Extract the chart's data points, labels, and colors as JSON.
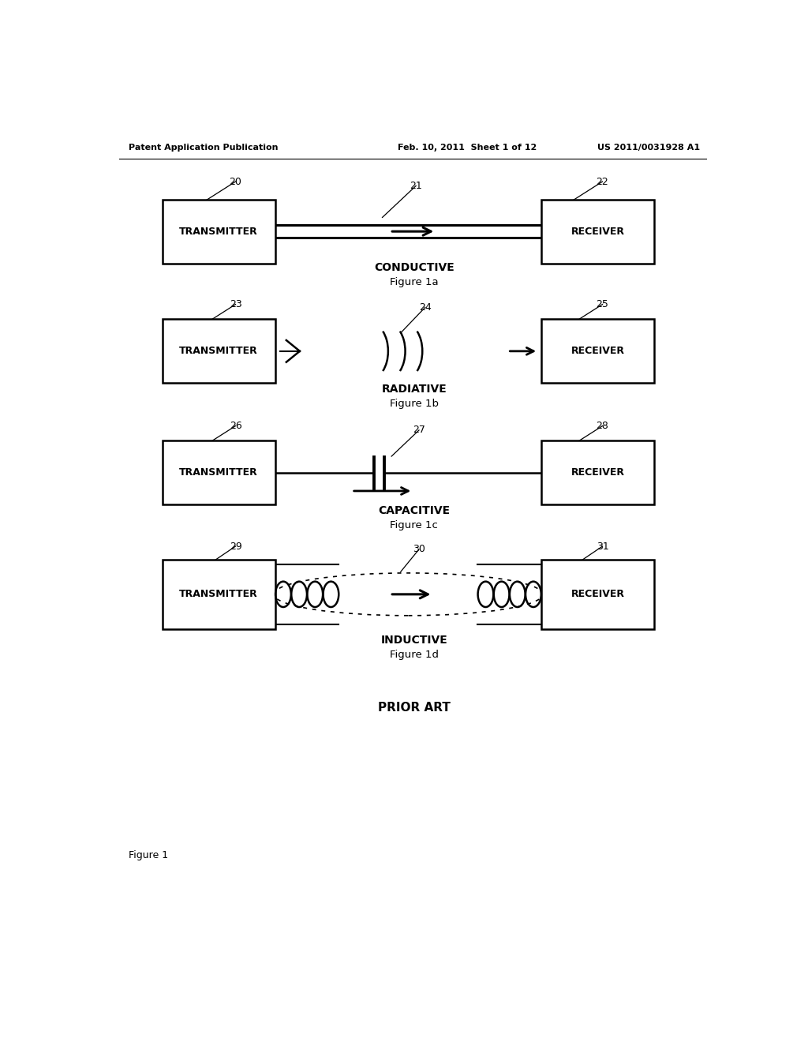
{
  "header_left": "Patent Application Publication",
  "header_mid": "Feb. 10, 2011  Sheet 1 of 12",
  "header_right": "US 2011/0031928 A1",
  "bg_color": "#ffffff",
  "fig1a": {
    "title": "CONDUCTIVE",
    "subtitle": "Figure 1a",
    "tx_label": "TRANSMITTER",
    "rx_label": "RECEIVER",
    "ref_tx": "20",
    "ref_line": "21",
    "ref_rx": "22"
  },
  "fig1b": {
    "title": "RADIATIVE",
    "subtitle": "Figure 1b",
    "tx_label": "TRANSMITTER",
    "rx_label": "RECEIVER",
    "ref_tx": "23",
    "ref_line": "24",
    "ref_rx": "25"
  },
  "fig1c": {
    "title": "CAPACITIVE",
    "subtitle": "Figure 1c",
    "tx_label": "TRANSMITTER",
    "rx_label": "RECEIVER",
    "ref_tx": "26",
    "ref_line": "27",
    "ref_rx": "28"
  },
  "fig1d": {
    "title": "INDUCTIVE",
    "subtitle": "Figure 1d",
    "tx_label": "TRANSMITTER",
    "rx_label": "RECEIVER",
    "ref_tx": "29",
    "ref_line": "30",
    "ref_rx": "31"
  },
  "footer": "PRIOR ART",
  "fig_label": "Figure 1"
}
